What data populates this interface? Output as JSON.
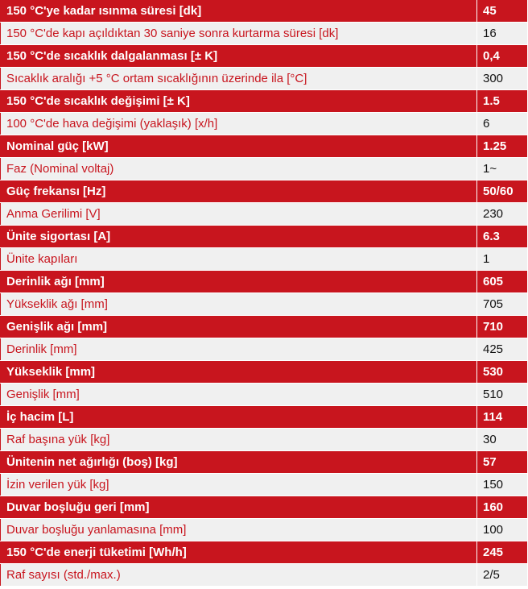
{
  "colors": {
    "accent_red": "#c8151e",
    "alt_row_bg": "#f0f0f0",
    "alt_row_label_text": "#c8151e",
    "alt_row_value_text": "#111111",
    "red_row_text": "#ffffff"
  },
  "spec_table": {
    "rows": [
      {
        "label": "150 °C'ye kadar ısınma süresi [dk]",
        "value": "45"
      },
      {
        "label": "150 °C'de kapı açıldıktan 30 saniye sonra kurtarma süresi [dk]",
        "value": "16"
      },
      {
        "label": "150 °C'de sıcaklık dalgalanması [± K]",
        "value": "0,4"
      },
      {
        "label": "Sıcaklık aralığı +5 °C ortam sıcaklığının üzerinde ila [°C]",
        "value": "300"
      },
      {
        "label": "150 °C'de sıcaklık değişimi [± K]",
        "value": "1.5"
      },
      {
        "label": "100 °C'de hava değişimi (yaklaşık) [x/h]",
        "value": "6"
      },
      {
        "label": "Nominal güç [kW]",
        "value": "1.25"
      },
      {
        "label": "Faz (Nominal voltaj)",
        "value": "1~"
      },
      {
        "label": "Güç frekansı [Hz]",
        "value": "50/60"
      },
      {
        "label": "Anma Gerilimi [V]",
        "value": "230"
      },
      {
        "label": "Ünite sigortası [A]",
        "value": "6.3"
      },
      {
        "label": "Ünite kapıları",
        "value": "1"
      },
      {
        "label": "Derinlik ağı [mm]",
        "value": "605"
      },
      {
        "label": "Yükseklik ağı [mm]",
        "value": "705"
      },
      {
        "label": "Genişlik ağı [mm]",
        "value": "710"
      },
      {
        "label": "Derinlik [mm]",
        "value": "425"
      },
      {
        "label": "Yükseklik [mm]",
        "value": "530"
      },
      {
        "label": "Genişlik [mm]",
        "value": "510"
      },
      {
        "label": "İç hacim [L]",
        "value": "114"
      },
      {
        "label": "Raf başına yük [kg]",
        "value": "30"
      },
      {
        "label": "Ünitenin net ağırlığı (boş) [kg]",
        "value": "57"
      },
      {
        "label": "İzin verilen yük [kg]",
        "value": "150"
      },
      {
        "label": "Duvar boşluğu geri [mm]",
        "value": "160"
      },
      {
        "label": "Duvar boşluğu yanlamasına [mm]",
        "value": "100"
      },
      {
        "label": "150 °C'de enerji tüketimi [Wh/h]",
        "value": "245"
      },
      {
        "label": "Raf sayısı (std./max.)",
        "value": "2/5"
      }
    ]
  }
}
